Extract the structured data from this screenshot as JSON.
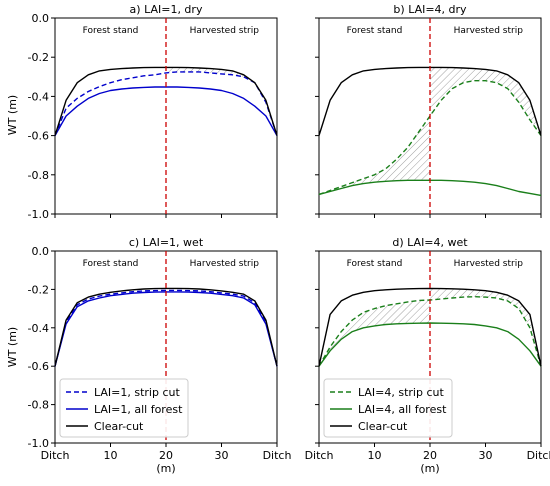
{
  "figure": {
    "ylabel": "WT (m)",
    "xlabel": "(m)",
    "region_left": "Forest stand",
    "region_right": "Harvested strip"
  },
  "legend_left": [
    "LAI=1, strip cut",
    "LAI=1, all forest",
    "Clear-cut"
  ],
  "legend_right": [
    "LAI=4, strip cut",
    "LAI=4, all forest",
    "Clear-cut"
  ],
  "colors": {
    "blue": "#0000cc",
    "green": "#1a7f1a",
    "black": "#000000",
    "divider": "#cc0000",
    "hatch": "#888888"
  },
  "chart_data": [
    {
      "type": "line",
      "title": "a) LAI=1, dry",
      "xlim": [
        0,
        40
      ],
      "ylim": [
        -1.0,
        0.0
      ],
      "x_ticks": [
        0,
        10,
        20,
        30,
        40
      ],
      "y_ticks": [
        0.0,
        -0.2,
        -0.4,
        -0.6,
        -0.8,
        -1.0
      ],
      "x_tick_labels": [
        "Ditch",
        "10",
        "20",
        "30",
        "Ditch"
      ],
      "divider_x": 20,
      "shade": "harvested",
      "x": [
        0,
        2,
        4,
        6,
        8,
        10,
        12,
        14,
        16,
        18,
        20,
        22,
        24,
        26,
        28,
        30,
        32,
        34,
        36,
        38,
        40
      ],
      "series": [
        {
          "name": "LAI=1, strip cut",
          "color": "blue",
          "dash": "dashed",
          "values": [
            -0.6,
            -0.46,
            -0.41,
            -0.375,
            -0.35,
            -0.33,
            -0.315,
            -0.305,
            -0.295,
            -0.29,
            -0.28,
            -0.275,
            -0.275,
            -0.275,
            -0.28,
            -0.285,
            -0.29,
            -0.3,
            -0.33,
            -0.43,
            -0.6
          ]
        },
        {
          "name": "LAI=1, all forest",
          "color": "blue",
          "dash": "solid",
          "values": [
            -0.6,
            -0.5,
            -0.45,
            -0.41,
            -0.385,
            -0.37,
            -0.362,
            -0.357,
            -0.354,
            -0.352,
            -0.352,
            -0.352,
            -0.354,
            -0.357,
            -0.362,
            -0.37,
            -0.385,
            -0.41,
            -0.45,
            -0.5,
            -0.6
          ]
        },
        {
          "name": "Clear-cut",
          "color": "black",
          "dash": "solid",
          "values": [
            -0.6,
            -0.42,
            -0.33,
            -0.29,
            -0.27,
            -0.262,
            -0.258,
            -0.255,
            -0.253,
            -0.252,
            -0.252,
            -0.252,
            -0.253,
            -0.255,
            -0.258,
            -0.262,
            -0.27,
            -0.29,
            -0.33,
            -0.42,
            -0.6
          ]
        }
      ]
    },
    {
      "type": "line",
      "title": "b) LAI=4, dry",
      "xlim": [
        0,
        40
      ],
      "ylim": [
        -1.0,
        0.0
      ],
      "x_ticks": [
        0,
        10,
        20,
        30,
        40
      ],
      "y_ticks": [
        0.0,
        -0.2,
        -0.4,
        -0.6,
        -0.8,
        -1.0
      ],
      "x_tick_labels": [
        "Ditch",
        "10",
        "20",
        "30",
        "Ditch"
      ],
      "divider_x": 20,
      "shade": "both",
      "x": [
        0,
        2,
        4,
        6,
        8,
        10,
        12,
        14,
        16,
        18,
        20,
        22,
        24,
        26,
        28,
        30,
        32,
        34,
        36,
        38,
        40
      ],
      "series": [
        {
          "name": "LAI=4, strip cut",
          "color": "green",
          "dash": "dashed",
          "values": [
            -0.9,
            -0.88,
            -0.86,
            -0.84,
            -0.82,
            -0.8,
            -0.77,
            -0.72,
            -0.66,
            -0.58,
            -0.5,
            -0.42,
            -0.36,
            -0.33,
            -0.32,
            -0.32,
            -0.33,
            -0.36,
            -0.43,
            -0.52,
            -0.6
          ]
        },
        {
          "name": "LAI=4, all forest",
          "color": "green",
          "dash": "solid",
          "values": [
            -0.9,
            -0.885,
            -0.87,
            -0.855,
            -0.845,
            -0.838,
            -0.833,
            -0.83,
            -0.828,
            -0.828,
            -0.828,
            -0.828,
            -0.83,
            -0.833,
            -0.838,
            -0.845,
            -0.855,
            -0.87,
            -0.885,
            -0.895,
            -0.905
          ]
        },
        {
          "name": "Clear-cut",
          "color": "black",
          "dash": "solid",
          "values": [
            -0.6,
            -0.42,
            -0.33,
            -0.29,
            -0.27,
            -0.262,
            -0.258,
            -0.255,
            -0.253,
            -0.252,
            -0.252,
            -0.252,
            -0.253,
            -0.255,
            -0.258,
            -0.262,
            -0.27,
            -0.29,
            -0.33,
            -0.42,
            -0.6
          ]
        }
      ]
    },
    {
      "type": "line",
      "title": "c) LAI=1, wet",
      "xlim": [
        0,
        40
      ],
      "ylim": [
        -1.0,
        0.0
      ],
      "x_ticks": [
        0,
        10,
        20,
        30,
        40
      ],
      "y_ticks": [
        0.0,
        -0.2,
        -0.4,
        -0.6,
        -0.8,
        -1.0
      ],
      "x_tick_labels": [
        "Ditch",
        "10",
        "20",
        "30",
        "Ditch"
      ],
      "divider_x": 20,
      "shade": "none",
      "legend": "left",
      "x": [
        0,
        2,
        4,
        6,
        8,
        10,
        12,
        14,
        16,
        18,
        20,
        22,
        24,
        26,
        28,
        30,
        32,
        34,
        36,
        38,
        40
      ],
      "series": [
        {
          "name": "LAI=1, strip cut",
          "color": "blue",
          "dash": "dashed",
          "values": [
            -0.6,
            -0.37,
            -0.28,
            -0.25,
            -0.235,
            -0.225,
            -0.218,
            -0.212,
            -0.208,
            -0.206,
            -0.205,
            -0.205,
            -0.206,
            -0.208,
            -0.212,
            -0.218,
            -0.225,
            -0.235,
            -0.27,
            -0.37,
            -0.6
          ]
        },
        {
          "name": "LAI=1, all forest",
          "color": "blue",
          "dash": "solid",
          "values": [
            -0.6,
            -0.38,
            -0.29,
            -0.26,
            -0.245,
            -0.233,
            -0.226,
            -0.22,
            -0.216,
            -0.214,
            -0.213,
            -0.213,
            -0.214,
            -0.216,
            -0.22,
            -0.226,
            -0.233,
            -0.245,
            -0.28,
            -0.38,
            -0.6
          ]
        },
        {
          "name": "Clear-cut",
          "color": "black",
          "dash": "solid",
          "values": [
            -0.6,
            -0.36,
            -0.27,
            -0.24,
            -0.225,
            -0.215,
            -0.208,
            -0.202,
            -0.198,
            -0.196,
            -0.195,
            -0.195,
            -0.196,
            -0.198,
            -0.202,
            -0.208,
            -0.215,
            -0.225,
            -0.26,
            -0.36,
            -0.6
          ]
        }
      ]
    },
    {
      "type": "line",
      "title": "d) LAI=4, wet",
      "xlim": [
        0,
        40
      ],
      "ylim": [
        -1.0,
        0.0
      ],
      "x_ticks": [
        0,
        10,
        20,
        30,
        40
      ],
      "y_ticks": [
        0.0,
        -0.2,
        -0.4,
        -0.6,
        -0.8,
        -1.0
      ],
      "x_tick_labels": [
        "Ditch",
        "10",
        "20",
        "30",
        "Ditch"
      ],
      "divider_x": 20,
      "shade": "both",
      "legend": "right",
      "x": [
        0,
        2,
        4,
        6,
        8,
        10,
        12,
        14,
        16,
        18,
        20,
        22,
        24,
        26,
        28,
        30,
        32,
        34,
        36,
        38,
        40
      ],
      "series": [
        {
          "name": "LAI=4, strip cut",
          "color": "green",
          "dash": "dashed",
          "values": [
            -0.6,
            -0.5,
            -0.42,
            -0.36,
            -0.32,
            -0.3,
            -0.285,
            -0.275,
            -0.265,
            -0.258,
            -0.255,
            -0.25,
            -0.245,
            -0.24,
            -0.238,
            -0.24,
            -0.245,
            -0.26,
            -0.3,
            -0.4,
            -0.6
          ]
        },
        {
          "name": "LAI=4, all forest",
          "color": "green",
          "dash": "solid",
          "values": [
            -0.6,
            -0.52,
            -0.46,
            -0.42,
            -0.4,
            -0.39,
            -0.383,
            -0.379,
            -0.377,
            -0.376,
            -0.375,
            -0.376,
            -0.377,
            -0.379,
            -0.383,
            -0.39,
            -0.4,
            -0.42,
            -0.46,
            -0.52,
            -0.6
          ]
        },
        {
          "name": "Clear-cut",
          "color": "black",
          "dash": "solid",
          "values": [
            -0.6,
            -0.33,
            -0.26,
            -0.23,
            -0.215,
            -0.207,
            -0.202,
            -0.199,
            -0.197,
            -0.196,
            -0.195,
            -0.196,
            -0.197,
            -0.199,
            -0.202,
            -0.207,
            -0.215,
            -0.23,
            -0.26,
            -0.33,
            -0.6
          ]
        }
      ]
    }
  ]
}
